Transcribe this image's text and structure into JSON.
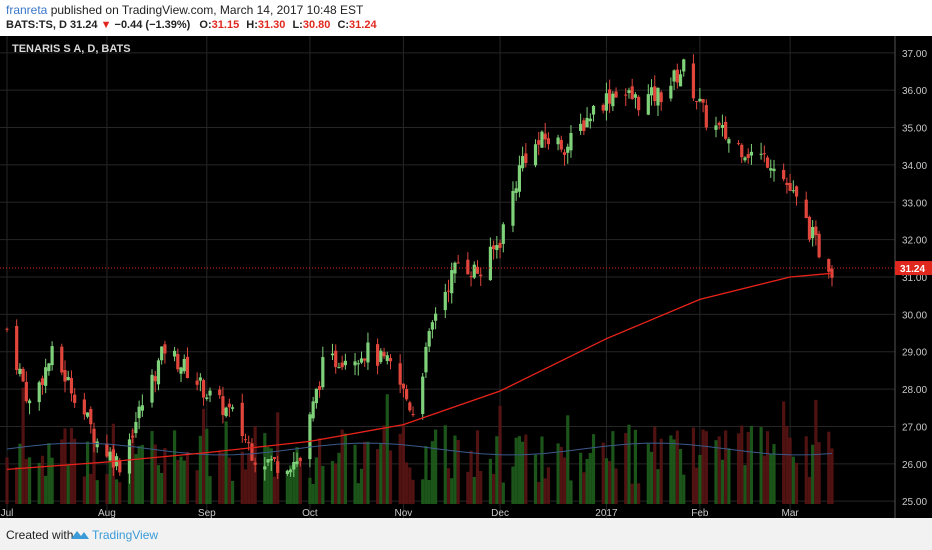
{
  "header": {
    "username": "franreta",
    "published": "published on TradingView.com, March 14, 2017 10:48 EST",
    "symbol": "BATS:TS, D",
    "last": "31.24",
    "change": "−0.44 (−1.39%)",
    "o_label": "O:",
    "o_value": "31.15",
    "h_label": "H:",
    "h_value": "31.30",
    "l_label": "L:",
    "l_value": "30.80",
    "c_label": "C:",
    "c_value": "31.24"
  },
  "footer": {
    "created": "Created with",
    "brand": "TradingView"
  },
  "colors": {
    "up": "#7fd27a",
    "down": "#e0463c",
    "ma": "#e8231b",
    "volume_ma": "#3b5a8a",
    "background": "#000000",
    "price_tag": "#e0281f"
  },
  "chart_data": {
    "type": "candlestick",
    "title": "TENARIS S A, D, BATS",
    "x_range": [
      "2016-07-01",
      "2017-03-14"
    ],
    "y_range": [
      24.55,
      37.45
    ],
    "y_ticks": [
      "37.00",
      "36.00",
      "35.00",
      "34.00",
      "33.00",
      "32.00",
      "31.00",
      "30.00",
      "29.00",
      "28.00",
      "27.00",
      "26.00",
      "25.00"
    ],
    "x_ticks": [
      {
        "label": "Jul",
        "date": "2016-07-01"
      },
      {
        "label": "Aug",
        "date": "2016-08-01"
      },
      {
        "label": "Sep",
        "date": "2016-09-01"
      },
      {
        "label": "Oct",
        "date": "2016-10-03"
      },
      {
        "label": "Nov",
        "date": "2016-11-01"
      },
      {
        "label": "Dec",
        "date": "2016-12-01"
      },
      {
        "label": "2017",
        "date": "2017-01-03"
      },
      {
        "label": "Feb",
        "date": "2017-02-01"
      },
      {
        "label": "Mar",
        "date": "2017-03-01"
      }
    ],
    "last_price": "31.24",
    "grid": true,
    "close_anchors": [
      [
        "2016-07-01",
        29.6
      ],
      [
        "2016-07-08",
        27.6
      ],
      [
        "2016-07-15",
        28.9
      ],
      [
        "2016-07-22",
        27.9
      ],
      [
        "2016-07-29",
        26.6
      ],
      [
        "2016-08-05",
        26.0
      ],
      [
        "2016-08-12",
        27.6
      ],
      [
        "2016-08-19",
        29.1
      ],
      [
        "2016-08-26",
        28.5
      ],
      [
        "2016-09-02",
        27.8
      ],
      [
        "2016-09-09",
        27.3
      ],
      [
        "2016-09-16",
        26.2
      ],
      [
        "2016-09-23",
        26.0
      ],
      [
        "2016-09-30",
        26.1
      ],
      [
        "2016-10-07",
        28.6
      ],
      [
        "2016-10-14",
        28.9
      ],
      [
        "2016-10-21",
        29.0
      ],
      [
        "2016-10-28",
        28.6
      ],
      [
        "2016-11-04",
        27.4
      ],
      [
        "2016-11-11",
        30.1
      ],
      [
        "2016-11-18",
        31.4
      ],
      [
        "2016-11-25",
        31.1
      ],
      [
        "2016-12-01",
        32.0
      ],
      [
        "2016-12-08",
        34.2
      ],
      [
        "2016-12-15",
        34.7
      ],
      [
        "2016-12-22",
        34.5
      ],
      [
        "2016-12-30",
        35.5
      ],
      [
        "2017-01-06",
        36.0
      ],
      [
        "2017-01-13",
        35.7
      ],
      [
        "2017-01-20",
        35.9
      ],
      [
        "2017-01-27",
        36.6
      ],
      [
        "2017-02-03",
        35.2
      ],
      [
        "2017-02-10",
        34.7
      ],
      [
        "2017-02-17",
        34.3
      ],
      [
        "2017-02-24",
        34.1
      ],
      [
        "2017-03-03",
        33.0
      ],
      [
        "2017-03-10",
        31.7
      ],
      [
        "2017-03-14",
        31.24
      ]
    ],
    "moving_average": [
      [
        "2016-07-01",
        25.85
      ],
      [
        "2016-08-01",
        26.05
      ],
      [
        "2016-09-01",
        26.3
      ],
      [
        "2016-10-03",
        26.6
      ],
      [
        "2016-11-01",
        27.05
      ],
      [
        "2016-12-01",
        27.95
      ],
      [
        "2017-01-03",
        29.35
      ],
      [
        "2017-02-01",
        30.4
      ],
      [
        "2017-03-01",
        31.0
      ],
      [
        "2017-03-14",
        31.1
      ]
    ]
  }
}
